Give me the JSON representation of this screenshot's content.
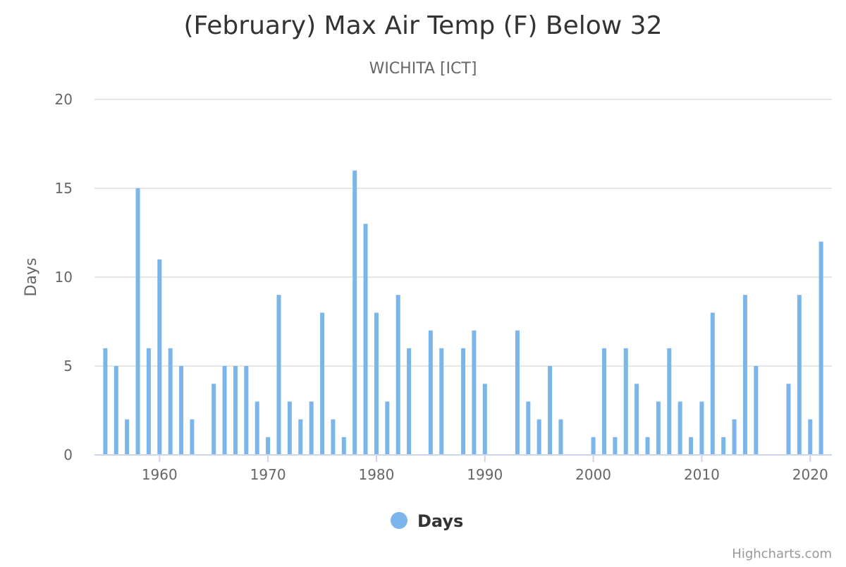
{
  "chart_data": {
    "type": "bar",
    "title": "(February) Max Air Temp (F) Below 32",
    "subtitle": "WICHITA [ICT]",
    "ylabel": "Days",
    "xlabel": "",
    "ylim": [
      0,
      20
    ],
    "yticks": [
      0,
      5,
      10,
      15,
      20
    ],
    "xlim": [
      1954,
      2022
    ],
    "xticks": [
      1960,
      1970,
      1980,
      1990,
      2000,
      2010,
      2020
    ],
    "grid": true,
    "legend_position": "bottom-center",
    "series": [
      {
        "name": "Days",
        "color": "#7cb5ec",
        "x": [
          1955,
          1956,
          1957,
          1958,
          1959,
          1960,
          1961,
          1962,
          1963,
          1965,
          1966,
          1967,
          1968,
          1969,
          1970,
          1971,
          1972,
          1973,
          1974,
          1975,
          1976,
          1977,
          1978,
          1979,
          1980,
          1981,
          1982,
          1983,
          1985,
          1986,
          1988,
          1989,
          1990,
          1993,
          1994,
          1995,
          1996,
          1997,
          2000,
          2001,
          2002,
          2003,
          2004,
          2005,
          2006,
          2007,
          2008,
          2009,
          2010,
          2011,
          2012,
          2013,
          2014,
          2015,
          2018,
          2019,
          2020,
          2021
        ],
        "values": [
          6,
          5,
          2,
          15,
          6,
          11,
          6,
          5,
          2,
          4,
          5,
          5,
          5,
          3,
          1,
          9,
          3,
          2,
          3,
          8,
          2,
          1,
          16,
          13,
          8,
          3,
          9,
          6,
          7,
          6,
          6,
          7,
          4,
          7,
          3,
          2,
          5,
          2,
          1,
          6,
          1,
          6,
          4,
          1,
          3,
          6,
          3,
          1,
          3,
          8,
          1,
          2,
          9,
          5,
          4,
          9,
          2,
          12
        ]
      }
    ]
  },
  "credits": "Highcharts.com",
  "colors": {
    "grid": "#e6e6e6",
    "axis": "#ccd6eb"
  }
}
